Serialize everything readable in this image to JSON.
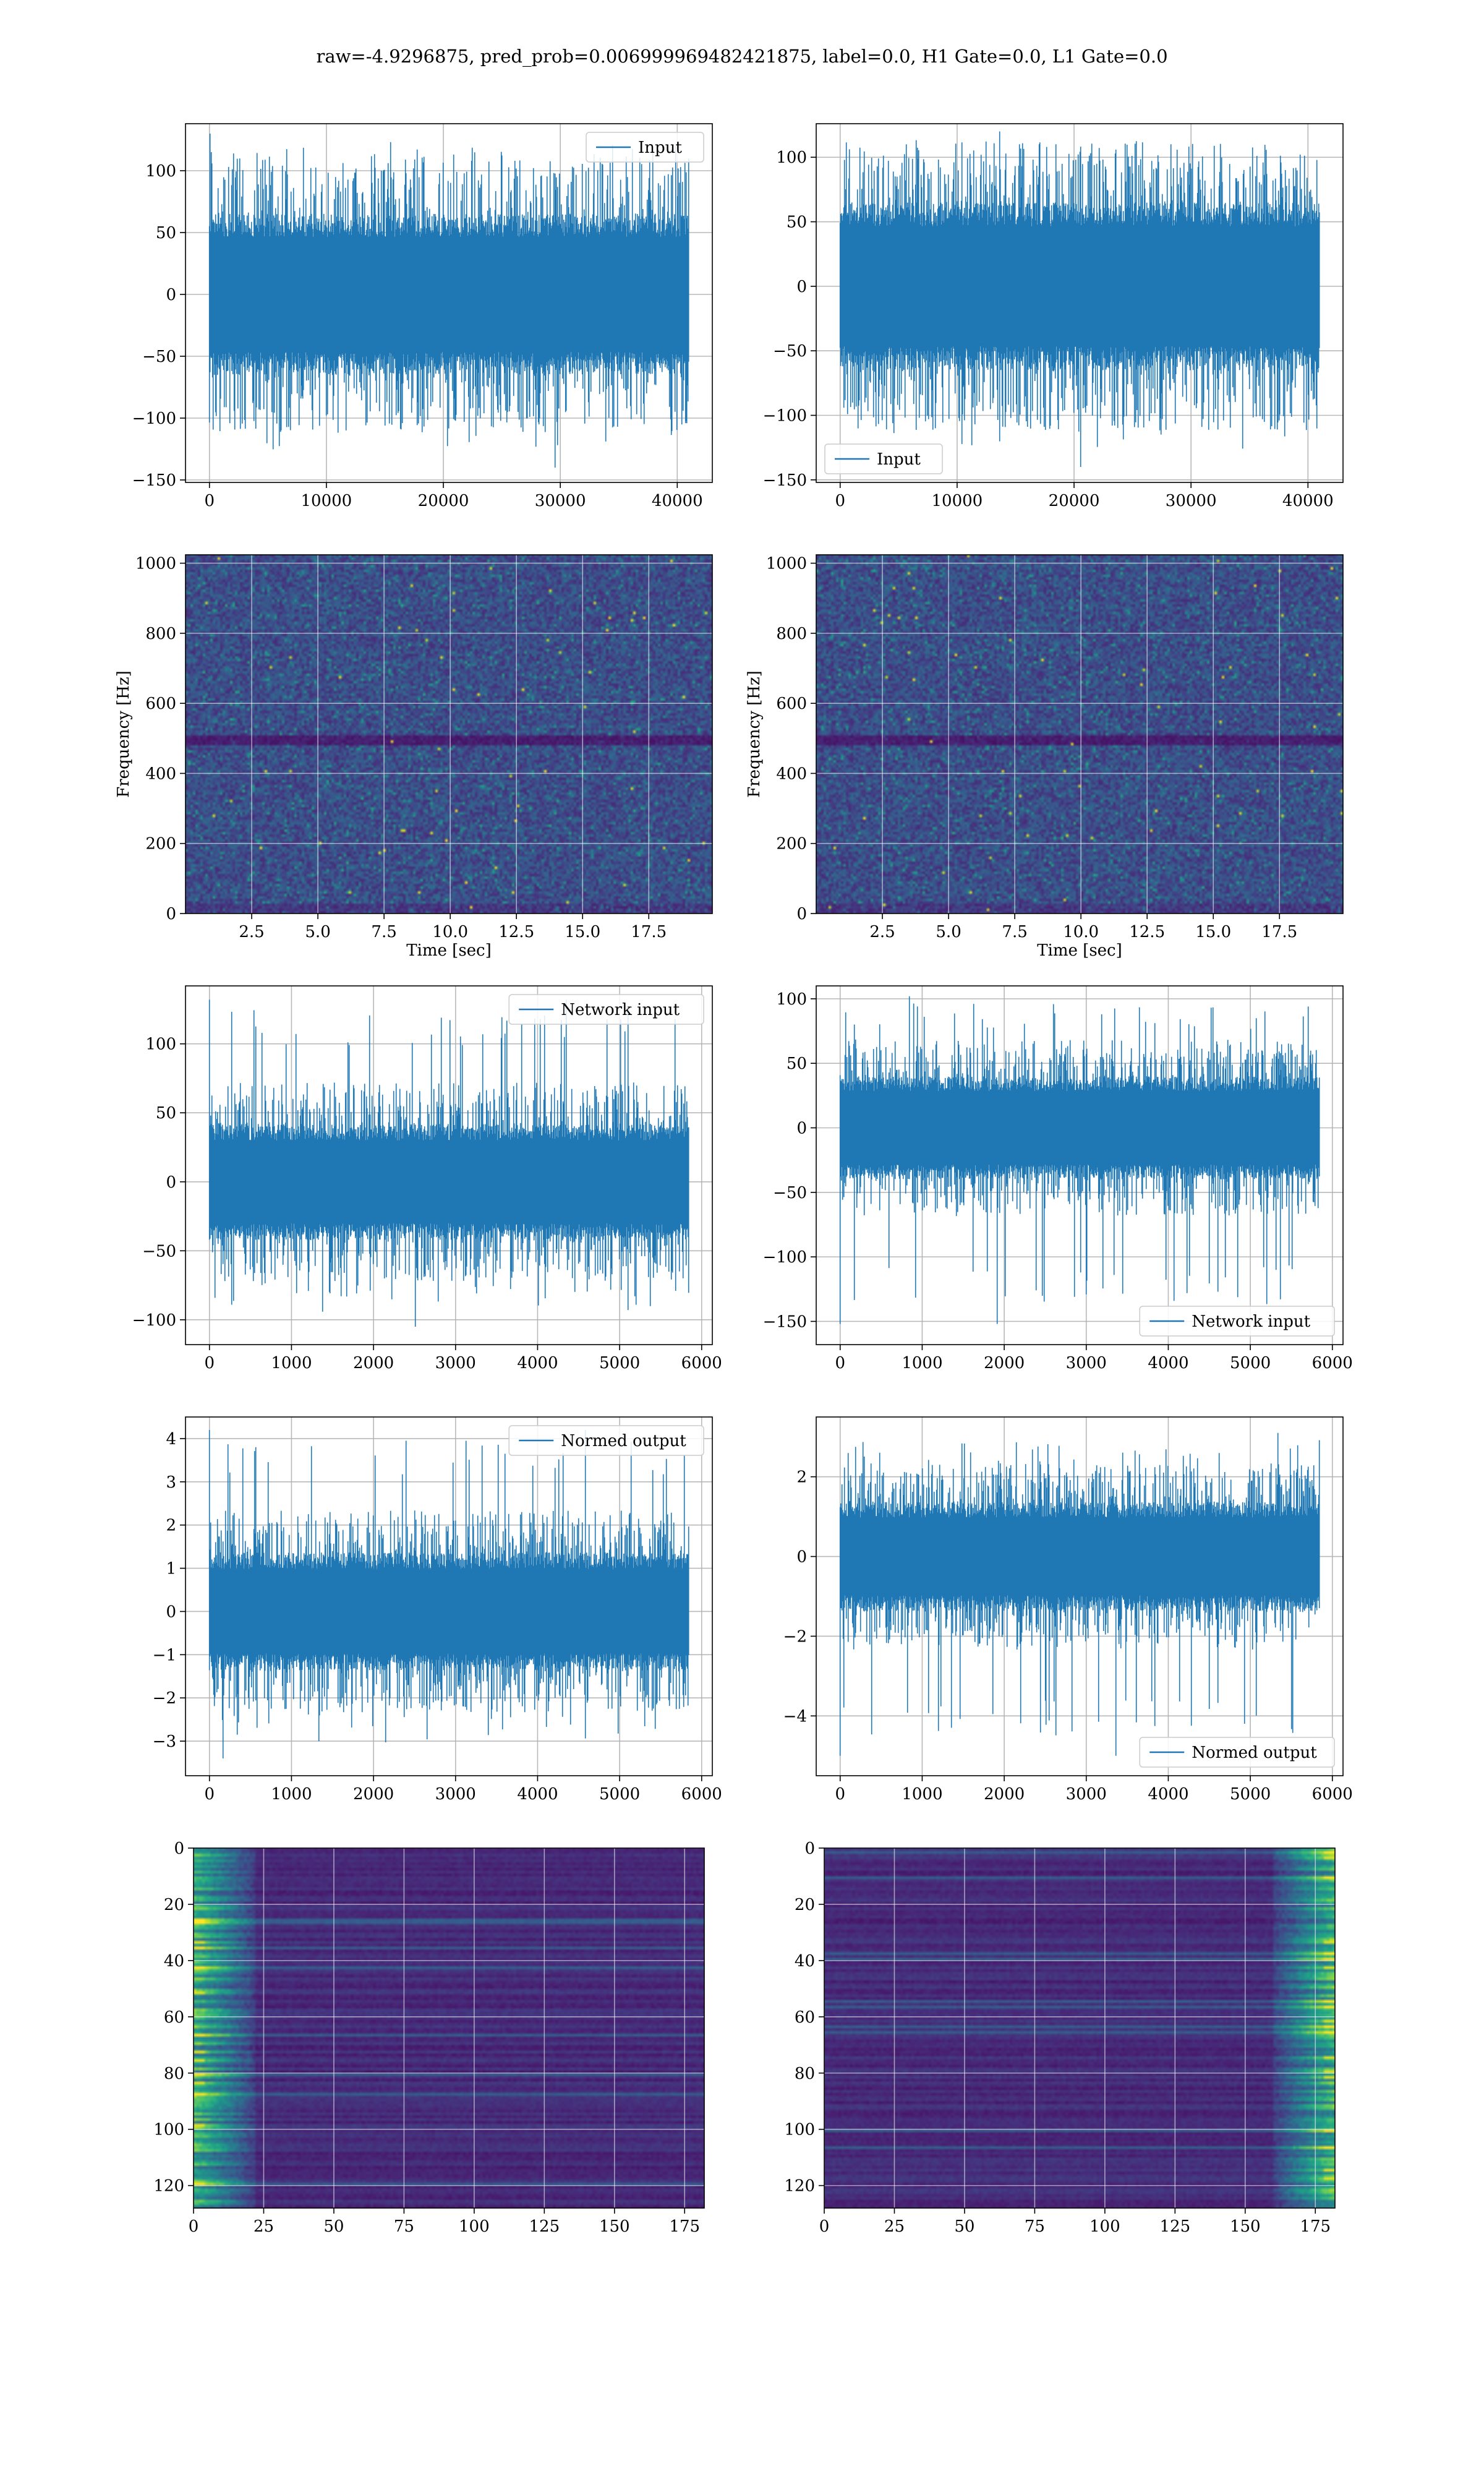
{
  "figure": {
    "title": "raw=-4.9296875, pred_prob=0.006999969482421875, label=0.0, H1 Gate=0.0, L1 Gate=0.0"
  },
  "colors": {
    "line": "#1f77b4",
    "grid": "#b0b0b0",
    "heatmap_low": "#440154",
    "heatmap_mid": "#21918c",
    "heatmap_high": "#fde725"
  },
  "chart_data": [
    {
      "id": "h1-input",
      "type": "line",
      "title": "",
      "xlabel": "",
      "ylabel": "",
      "xlim": [
        -2048,
        42998
      ],
      "ylim": [
        -152,
        138
      ],
      "xticks": [
        0,
        10000,
        20000,
        30000,
        40000
      ],
      "yticks": [
        -150,
        -100,
        -50,
        0,
        50,
        100
      ],
      "series": [
        {
          "name": "Input",
          "x_range": [
            0,
            40960
          ],
          "band": [
            -62,
            62
          ],
          "peak_max": 130,
          "peak_min": -140
        }
      ],
      "legend": "upper right",
      "grid": true
    },
    {
      "id": "l1-input",
      "type": "line",
      "title": "",
      "xlabel": "",
      "ylabel": "",
      "xlim": [
        -2048,
        42998
      ],
      "ylim": [
        -152,
        126
      ],
      "xticks": [
        0,
        10000,
        20000,
        30000,
        40000
      ],
      "yticks": [
        -150,
        -100,
        -50,
        0,
        50,
        100
      ],
      "series": [
        {
          "name": "Input",
          "x_range": [
            0,
            40960
          ],
          "band": [
            -62,
            62
          ],
          "peak_max": 120,
          "peak_min": -140
        }
      ],
      "legend": "lower left",
      "grid": true
    },
    {
      "id": "h1-spectrogram",
      "type": "heatmap",
      "title": "",
      "xlabel": "Time [sec]",
      "ylabel": "Frequency [Hz]",
      "xlim": [
        0,
        19.9
      ],
      "ylim": [
        0,
        1024
      ],
      "xticks": [
        2.5,
        5.0,
        7.5,
        10.0,
        12.5,
        15.0,
        17.5
      ],
      "yticks": [
        0,
        200,
        400,
        600,
        800,
        1000
      ],
      "colormap": "viridis",
      "grid": true
    },
    {
      "id": "l1-spectrogram",
      "type": "heatmap",
      "title": "",
      "xlabel": "Time [sec]",
      "ylabel": "Frequency [Hz]",
      "xlim": [
        0,
        19.9
      ],
      "ylim": [
        0,
        1024
      ],
      "xticks": [
        2.5,
        5.0,
        7.5,
        10.0,
        12.5,
        15.0,
        17.5
      ],
      "yticks": [
        0,
        200,
        400,
        600,
        800,
        1000
      ],
      "colormap": "viridis",
      "grid": true
    },
    {
      "id": "h1-network-input",
      "type": "line",
      "title": "",
      "xlabel": "",
      "ylabel": "",
      "xlim": [
        -292,
        6130
      ],
      "ylim": [
        -118,
        142
      ],
      "xticks": [
        0,
        1000,
        2000,
        3000,
        4000,
        5000,
        6000
      ],
      "yticks": [
        -100,
        -50,
        0,
        50,
        100
      ],
      "series": [
        {
          "name": "Network input",
          "x_range": [
            0,
            5838
          ],
          "band": [
            -40,
            40
          ],
          "peak_max": 132,
          "peak_min": -105
        }
      ],
      "legend": "upper right",
      "grid": true
    },
    {
      "id": "l1-network-input",
      "type": "line",
      "title": "",
      "xlabel": "",
      "ylabel": "",
      "xlim": [
        -292,
        6130
      ],
      "ylim": [
        -168,
        110
      ],
      "xticks": [
        0,
        1000,
        2000,
        3000,
        4000,
        5000,
        6000
      ],
      "yticks": [
        -150,
        -100,
        -50,
        0,
        50,
        100
      ],
      "series": [
        {
          "name": "Network input",
          "x_range": [
            0,
            5838
          ],
          "band": [
            -38,
            38
          ],
          "peak_max": 102,
          "peak_min": -152
        }
      ],
      "legend": "lower right",
      "grid": true
    },
    {
      "id": "h1-normed-output",
      "type": "line",
      "title": "",
      "xlabel": "",
      "ylabel": "",
      "xlim": [
        -292,
        6130
      ],
      "ylim": [
        -3.8,
        4.5
      ],
      "xticks": [
        0,
        1000,
        2000,
        3000,
        4000,
        5000,
        6000
      ],
      "yticks": [
        -3,
        -2,
        -1,
        0,
        1,
        2,
        3,
        4
      ],
      "series": [
        {
          "name": "Normed output",
          "x_range": [
            0,
            5838
          ],
          "band": [
            -1.3,
            1.3
          ],
          "peak_max": 4.2,
          "peak_min": -3.4
        }
      ],
      "legend": "upper right",
      "grid": true
    },
    {
      "id": "l1-normed-output",
      "type": "line",
      "title": "",
      "xlabel": "",
      "ylabel": "",
      "xlim": [
        -292,
        6130
      ],
      "ylim": [
        -5.5,
        3.5
      ],
      "xticks": [
        0,
        1000,
        2000,
        3000,
        4000,
        5000,
        6000
      ],
      "yticks": [
        -4,
        -2,
        0,
        2
      ],
      "series": [
        {
          "name": "Normed output",
          "x_range": [
            0,
            5838
          ],
          "band": [
            -1.3,
            1.3
          ],
          "peak_max": 3.1,
          "peak_min": -5.0
        }
      ],
      "legend": "lower right",
      "grid": true
    },
    {
      "id": "h1-feature-map",
      "type": "heatmap",
      "title": "",
      "xlabel": "",
      "ylabel": "",
      "xlim": [
        0,
        182
      ],
      "ylim": [
        128,
        0
      ],
      "xticks": [
        0,
        25,
        50,
        75,
        100,
        125,
        150,
        175
      ],
      "yticks": [
        0,
        20,
        40,
        60,
        80,
        100,
        120
      ],
      "colormap": "viridis",
      "grid": true,
      "hot_side": "left"
    },
    {
      "id": "l1-feature-map",
      "type": "heatmap",
      "title": "",
      "xlabel": "",
      "ylabel": "",
      "xlim": [
        0,
        182
      ],
      "ylim": [
        128,
        0
      ],
      "xticks": [
        0,
        25,
        50,
        75,
        100,
        125,
        150,
        175
      ],
      "yticks": [
        0,
        20,
        40,
        60,
        80,
        100,
        120
      ],
      "colormap": "viridis",
      "grid": true,
      "hot_side": "right"
    }
  ]
}
